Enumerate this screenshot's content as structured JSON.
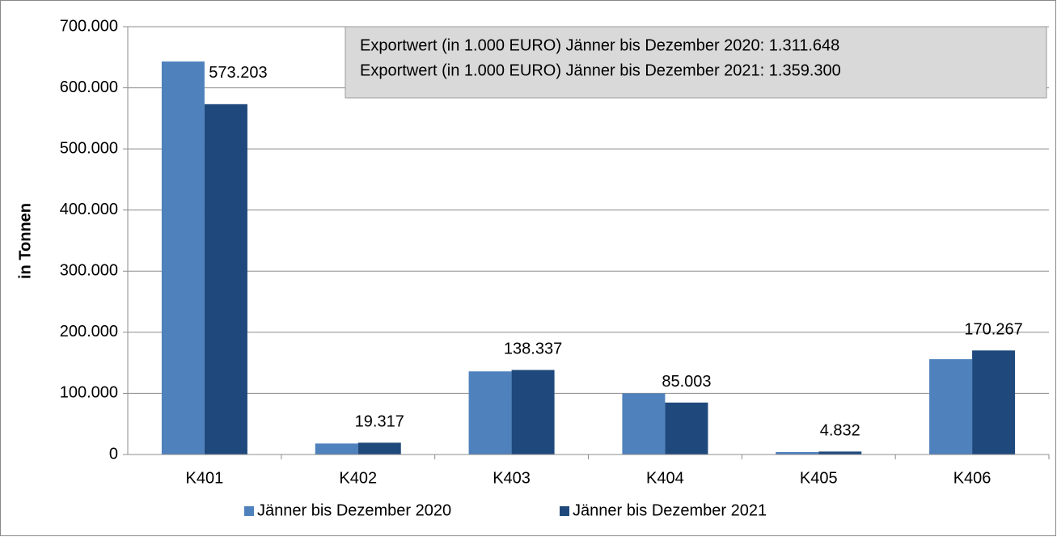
{
  "chart_data": {
    "type": "bar",
    "y_label": "in Tonnen",
    "annotations": [
      "Exportwert (in 1.000 EURO) Jänner bis Dezember 2020: 1.311.648",
      "Exportwert (in 1.000 EURO) Jänner bis Dezember 2021: 1.359.300"
    ],
    "categories": [
      "K401",
      "K402",
      "K403",
      "K404",
      "K405",
      "K406"
    ],
    "series": [
      {
        "name": "Jänner bis Dezember 2020",
        "color": "#4f81bd",
        "values": [
          643000,
          18000,
          136000,
          100000,
          4000,
          156000
        ]
      },
      {
        "name": "Jänner bis Dezember 2021",
        "color": "#1f497d",
        "values": [
          573203,
          19317,
          138337,
          85003,
          4832,
          170267
        ],
        "value_labels": [
          "573.203",
          "19.317",
          "138.337",
          "85.003",
          "4.832",
          "170.267"
        ]
      }
    ],
    "ylim": [
      0,
      700000
    ],
    "yticks": [
      0,
      {
        "value": 100000,
        "label": "100.000"
      },
      {
        "value": 200000,
        "label": "200.000"
      },
      {
        "value": 300000,
        "label": "300.000"
      },
      {
        "value": 400000,
        "label": "400.000"
      },
      {
        "value": 500000,
        "label": "500.000"
      },
      {
        "value": 600000,
        "label": "600.000"
      },
      {
        "value": 700000,
        "label": "700.000"
      }
    ],
    "grid": true,
    "legend": "bottom"
  }
}
